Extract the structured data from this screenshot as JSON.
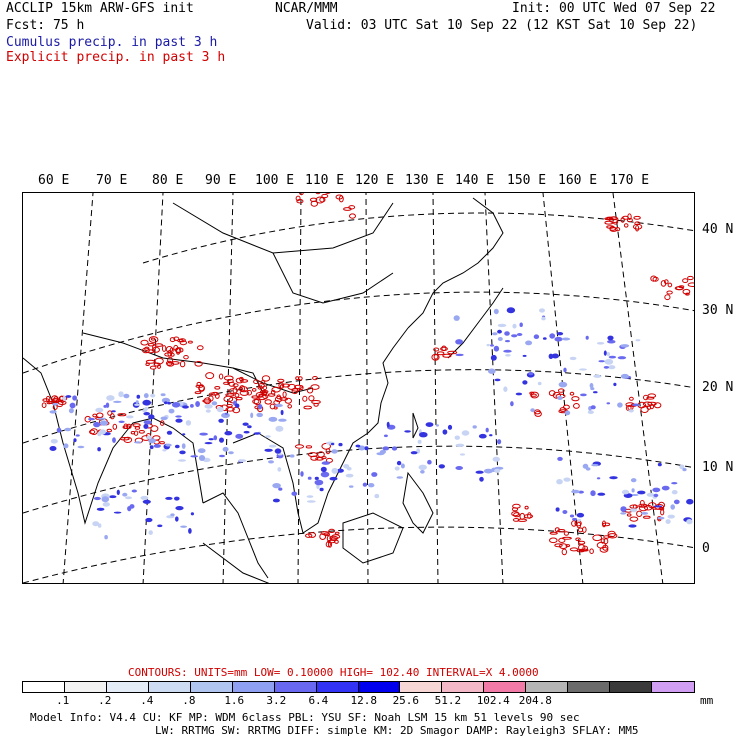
{
  "header": {
    "model": "ACCLIP 15km ARW-GFS init",
    "center": "NCAR/MMM",
    "init": "Init: 00 UTC Wed 07 Sep 22",
    "fcst": "Fcst:   75 h",
    "valid": "Valid: 03 UTC Sat 10 Sep 22 (12 KST Sat 10 Sep 22)",
    "cumulus": "Cumulus precip. in past 3 h",
    "explicit": "Explicit precip. in past 3 h"
  },
  "map": {
    "lon_labels": [
      "60 E",
      "70 E",
      "80 E",
      "90 E",
      "100 E",
      "110 E",
      "120 E",
      "130 E",
      "140 E",
      "150 E",
      "160 E",
      "170 E"
    ],
    "lat_labels": [
      "40 N",
      "30 N",
      "20 N",
      "10 N",
      "0"
    ]
  },
  "contours": {
    "text": "CONTOURS:  UNITS=mm  LOW= 0.10000      HIGH=  102.40      INTERVAL=X  4.0000"
  },
  "legend": {
    "colors": [
      "#ffffff",
      "#f2f2f2",
      "#e4ecf7",
      "#cddcf3",
      "#b0c6f0",
      "#8f9ff2",
      "#6868f0",
      "#3333f5",
      "#0000ee",
      "#f7d6d6",
      "#f5b8c8",
      "#f27aa6",
      "#b5b5b5",
      "#6b6b6b",
      "#3a3a3a",
      "#d09ef2"
    ],
    "ticks": [
      ".1",
      ".2",
      ".4",
      ".8",
      "1.6",
      "3.2",
      "6.4",
      "12.8",
      "25.6",
      "51.2",
      "102.4",
      "204.8"
    ],
    "unit": "mm"
  },
  "footer": {
    "line1": "Model Info: V4.4     CU: KF      MP: WDM 6class  PBL: YSU       SF: Noah LSM     15 km    51 levels   90 sec",
    "line2": "LW: RRTMG   SW: RRTMG  DIFF: simple KM: 2D Smagor DAMP: Rayleigh3  SFLAY: MM5"
  },
  "colors": {
    "cumulus": "#1a1aa6",
    "explicit": "#d10000"
  }
}
